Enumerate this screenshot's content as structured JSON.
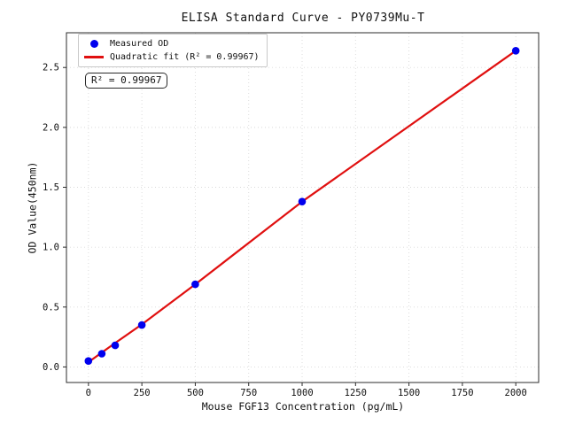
{
  "chart_data": {
    "type": "scatter",
    "title": "ELISA Standard Curve - PY0739Mu-T",
    "xlabel": "Mouse FGF13 Concentration (pg/mL)",
    "ylabel": "OD Value(450nm)",
    "xlim": [
      -103,
      2107
    ],
    "ylim": [
      -0.13,
      2.79
    ],
    "grid": true,
    "legend_position": "upper-left",
    "x_ticks": [
      {
        "value": 0,
        "label": "0"
      },
      {
        "value": 250,
        "label": "250"
      },
      {
        "value": 500,
        "label": "500"
      },
      {
        "value": 750,
        "label": "750"
      },
      {
        "value": 1000,
        "label": "1000"
      },
      {
        "value": 1250,
        "label": "1250"
      },
      {
        "value": 1500,
        "label": "1500"
      },
      {
        "value": 1750,
        "label": "1750"
      },
      {
        "value": 2000,
        "label": "2000"
      }
    ],
    "y_ticks": [
      {
        "value": 0.0,
        "label": "0.0"
      },
      {
        "value": 0.5,
        "label": "0.5"
      },
      {
        "value": 1.0,
        "label": "1.0"
      },
      {
        "value": 1.5,
        "label": "1.5"
      },
      {
        "value": 2.0,
        "label": "2.0"
      },
      {
        "value": 2.5,
        "label": "2.5"
      }
    ],
    "series": [
      {
        "name": "Quadratic fit",
        "type": "line",
        "color": "#e01010",
        "points": [
          {
            "x": 0,
            "y": 0.04
          },
          {
            "x": 62.5,
            "y": 0.12
          },
          {
            "x": 125,
            "y": 0.2
          },
          {
            "x": 250,
            "y": 0.355
          },
          {
            "x": 500,
            "y": 0.69
          },
          {
            "x": 1000,
            "y": 1.38
          },
          {
            "x": 2000,
            "y": 2.64
          }
        ]
      },
      {
        "name": "Measured OD",
        "type": "scatter",
        "color": "#0000ee",
        "points": [
          {
            "x": 0,
            "y": 0.05
          },
          {
            "x": 62.5,
            "y": 0.11
          },
          {
            "x": 125,
            "y": 0.18
          },
          {
            "x": 250,
            "y": 0.35
          },
          {
            "x": 500,
            "y": 0.69
          },
          {
            "x": 1000,
            "y": 1.38
          },
          {
            "x": 2000,
            "y": 2.64
          }
        ]
      }
    ],
    "legend": [
      {
        "label": "Measured OD",
        "marker": "dot"
      },
      {
        "label": "Quadratic fit (R² = 0.99967)",
        "marker": "line"
      }
    ],
    "annotation": "R² = 0.99967",
    "r_squared": 0.99967,
    "colors": {
      "point": "#0000ee",
      "line": "#e01010",
      "grid": "#d9d9d9",
      "spine": "#2b2b2b",
      "text": "#111111"
    }
  }
}
